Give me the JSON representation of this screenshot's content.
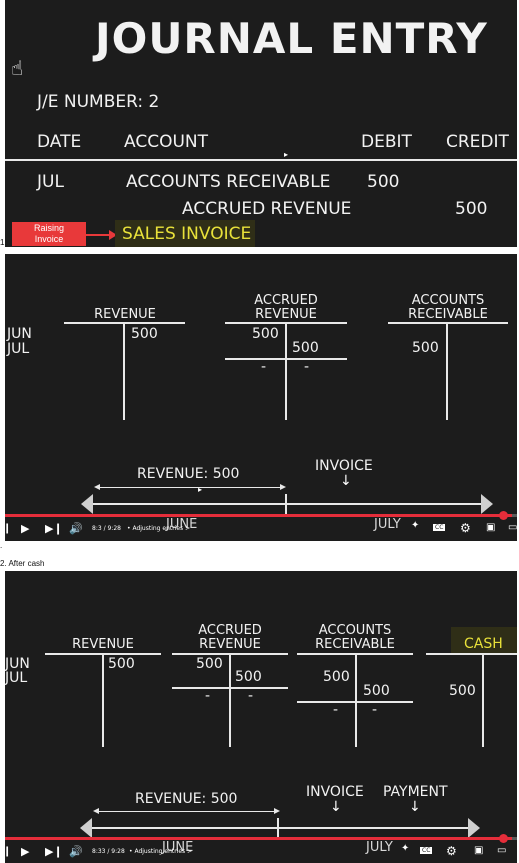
{
  "panel1": {
    "title": "JOURNAL ENTRY",
    "je_number": "J/E NUMBER: 2",
    "headers": {
      "date": "DATE",
      "account": "ACCOUNT",
      "debit": "DEBIT",
      "credit": "CREDIT"
    },
    "row1": {
      "date": "JUL",
      "account": "ACCOUNTS RECEIVABLE",
      "debit": "500"
    },
    "row2": {
      "account": "ACCRUED REVENUE",
      "credit": "500"
    },
    "raising_tag": "Raising Invoice",
    "sales_invoice": "SALES INVOICE"
  },
  "panel2": {
    "months": {
      "jun": "JUN",
      "jul": "JUL"
    },
    "revenue": {
      "title": "REVENUE",
      "debit": "500"
    },
    "accrued": {
      "title1": "ACCRUED",
      "title2": "REVENUE",
      "left": "500",
      "right": "500",
      "dash_left": "-",
      "dash_right": "-"
    },
    "ar": {
      "title1": "ACCOUNTS",
      "title2": "RECEIVABLE",
      "left": "500"
    },
    "timeline": {
      "revenue_label": "REVENUE: 500",
      "invoice_label": "INVOICE",
      "june": "JUNE",
      "july": "JULY"
    },
    "player": {
      "time": "8:3 / 9:28",
      "chapter": "• Adjusting entries >"
    }
  },
  "caption_mid": ".",
  "caption_after": "2. After cash",
  "caption_top": "1.",
  "panel3": {
    "months": {
      "jun": "JUN",
      "jul": "JUL"
    },
    "revenue": {
      "title": "REVENUE",
      "debit": "500"
    },
    "accrued": {
      "title1": "ACCRUED",
      "title2": "REVENUE",
      "left": "500",
      "right": "500",
      "dash_left": "-",
      "dash_right": "-"
    },
    "ar": {
      "title1": "ACCOUNTS",
      "title2": "RECEIVABLE",
      "left": "500",
      "right": "500",
      "dash_left": "-",
      "dash_right": "-"
    },
    "cash": {
      "title": "CASH",
      "left": "500"
    },
    "timeline": {
      "revenue_label": "REVENUE: 500",
      "invoice_label": "INVOICE",
      "payment_label": "PAYMENT",
      "june": "JUNE",
      "july": "JULY"
    },
    "player": {
      "time": "8:33 / 9:28",
      "chapter": "• Adjusting entries >"
    }
  },
  "colors": {
    "panel_bg": "#1c1c1c",
    "highlight": "#e8e13a",
    "progress": "#e52d3a",
    "tag": "#e8393a"
  }
}
